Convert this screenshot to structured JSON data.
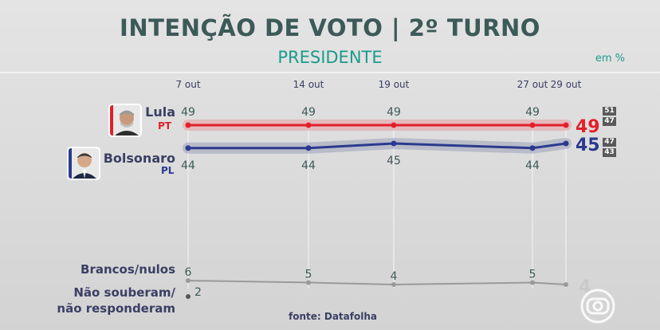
{
  "header": {
    "title": "INTENÇÃO DE VOTO | 2º TURNO",
    "subtitle": "PRESIDENTE",
    "unit": "em %"
  },
  "candidates": [
    {
      "name": "Lula",
      "party": "PT",
      "party_color": "#e2202a",
      "avatar_icon": "lula-photo"
    },
    {
      "name": "Bolsonaro",
      "party": "PL",
      "party_color": "#2b3a8f",
      "avatar_icon": "bolsonaro-photo"
    }
  ],
  "other_labels": {
    "brancos": "Brancos/nulos",
    "nao_souberam_line1": "Não souberam/",
    "nao_souberam_line2": "não responderam"
  },
  "source": "fonte: Datafolha",
  "chart_data": {
    "type": "line",
    "x": [
      "7 out",
      "14 out",
      "19 out",
      "27 out",
      "29 out"
    ],
    "series": [
      {
        "name": "Lula",
        "values": [
          49,
          49,
          49,
          49,
          49
        ],
        "color": "#e2202a",
        "range": [
          51,
          47
        ]
      },
      {
        "name": "Bolsonaro",
        "values": [
          44,
          44,
          45,
          44,
          45
        ],
        "color": "#2b3a8f",
        "range": [
          47,
          43
        ]
      },
      {
        "name": "Brancos/nulos",
        "values": [
          6,
          5,
          4,
          5,
          4
        ],
        "color": "#9a9a9a"
      },
      {
        "name": "Não souberam/ não responderam",
        "values": [
          2,
          null,
          null,
          null,
          null
        ],
        "color": "#555555"
      }
    ]
  }
}
